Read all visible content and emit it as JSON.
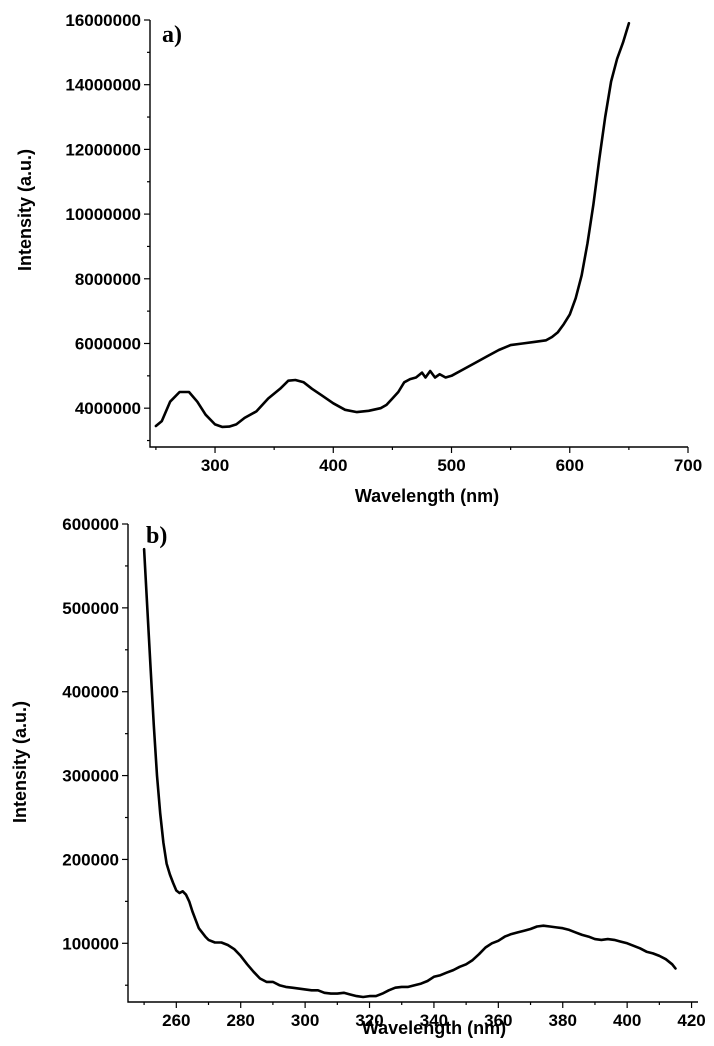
{
  "chart_data": [
    {
      "type": "line",
      "panel_label": "a)",
      "xlabel": "Wavelength (nm)",
      "ylabel": "Intensity (a.u.)",
      "xlim": [
        245,
        700
      ],
      "ylim": [
        2800000,
        16000000
      ],
      "x_ticks": [
        300,
        400,
        500,
        600,
        700
      ],
      "y_ticks": [
        4000000,
        6000000,
        8000000,
        10000000,
        12000000,
        14000000,
        16000000
      ],
      "y_tick_labels": [
        "4000000",
        "6000000",
        "8000000",
        "10000000",
        "12000000",
        "14000000",
        "16000000"
      ],
      "x_tick_labels": [
        "300",
        "400",
        "500",
        "600",
        "700"
      ],
      "grid": false,
      "series": [
        {
          "color": "#000000",
          "x": [
            250,
            255,
            262,
            270,
            278,
            285,
            292,
            300,
            306,
            312,
            318,
            325,
            335,
            345,
            355,
            362,
            368,
            375,
            382,
            390,
            400,
            410,
            420,
            430,
            440,
            445,
            450,
            455,
            460,
            465,
            470,
            475,
            478,
            482,
            486,
            490,
            495,
            500,
            510,
            520,
            530,
            540,
            550,
            560,
            570,
            580,
            585,
            590,
            595,
            600,
            605,
            610,
            615,
            620,
            625,
            630,
            635,
            640,
            645,
            650
          ],
          "y": [
            3450000,
            3600000,
            4200000,
            4500000,
            4500000,
            4200000,
            3800000,
            3500000,
            3420000,
            3430000,
            3500000,
            3700000,
            3900000,
            4300000,
            4600000,
            4850000,
            4870000,
            4800000,
            4600000,
            4400000,
            4150000,
            3950000,
            3880000,
            3920000,
            4000000,
            4100000,
            4300000,
            4500000,
            4800000,
            4900000,
            4950000,
            5100000,
            4950000,
            5150000,
            4950000,
            5050000,
            4950000,
            5000000,
            5200000,
            5400000,
            5600000,
            5800000,
            5950000,
            6000000,
            6050000,
            6100000,
            6200000,
            6350000,
            6600000,
            6900000,
            7400000,
            8100000,
            9100000,
            10300000,
            11700000,
            13000000,
            14100000,
            14800000,
            15300000,
            15900000
          ]
        }
      ]
    },
    {
      "type": "line",
      "panel_label": "b)",
      "xlabel": "Wavelength (nm)",
      "ylabel": "Intensity (a.u.)",
      "xlim": [
        245,
        422
      ],
      "ylim": [
        30000,
        600000
      ],
      "x_ticks": [
        260,
        280,
        300,
        320,
        340,
        360,
        380,
        400,
        420
      ],
      "y_ticks": [
        100000,
        200000,
        300000,
        400000,
        500000,
        600000
      ],
      "y_tick_labels": [
        "100000",
        "200000",
        "300000",
        "400000",
        "500000",
        "600000"
      ],
      "x_tick_labels": [
        "260",
        "280",
        "300",
        "320",
        "340",
        "360",
        "380",
        "400",
        "420"
      ],
      "grid": false,
      "series": [
        {
          "color": "#000000",
          "x": [
            250,
            251,
            252,
            253,
            254,
            255,
            256,
            257,
            258,
            259,
            260,
            261,
            262,
            263,
            264,
            265,
            266,
            267,
            268,
            269,
            270,
            272,
            274,
            276,
            278,
            280,
            282,
            284,
            286,
            288,
            290,
            292,
            294,
            296,
            298,
            300,
            302,
            304,
            306,
            308,
            310,
            312,
            314,
            316,
            318,
            320,
            322,
            324,
            326,
            328,
            330,
            332,
            334,
            336,
            338,
            340,
            342,
            344,
            346,
            348,
            350,
            352,
            354,
            356,
            358,
            360,
            362,
            364,
            366,
            368,
            370,
            372,
            374,
            376,
            378,
            380,
            382,
            384,
            386,
            388,
            390,
            392,
            394,
            396,
            398,
            400,
            402,
            404,
            406,
            408,
            410,
            412,
            414,
            415
          ],
          "y": [
            570000,
            500000,
            430000,
            360000,
            300000,
            255000,
            220000,
            195000,
            182000,
            172000,
            163000,
            160000,
            162000,
            158000,
            150000,
            138000,
            128000,
            118000,
            113000,
            108000,
            104000,
            101000,
            101000,
            98000,
            93000,
            85000,
            75000,
            66000,
            58000,
            54000,
            54000,
            50000,
            48000,
            47000,
            46000,
            45000,
            44000,
            44000,
            41000,
            40000,
            40000,
            41000,
            39000,
            37000,
            36000,
            37000,
            37000,
            40000,
            44000,
            47000,
            48000,
            48000,
            50000,
            52000,
            55000,
            60000,
            62000,
            65000,
            68000,
            72000,
            75000,
            80000,
            87000,
            95000,
            100000,
            103000,
            108000,
            111000,
            113000,
            115000,
            117000,
            120000,
            121000,
            120000,
            119000,
            118000,
            116000,
            113000,
            110000,
            108000,
            105000,
            104000,
            105000,
            104000,
            102000,
            100000,
            97000,
            94000,
            90000,
            88000,
            85000,
            81000,
            75000,
            70000
          ]
        }
      ]
    }
  ]
}
